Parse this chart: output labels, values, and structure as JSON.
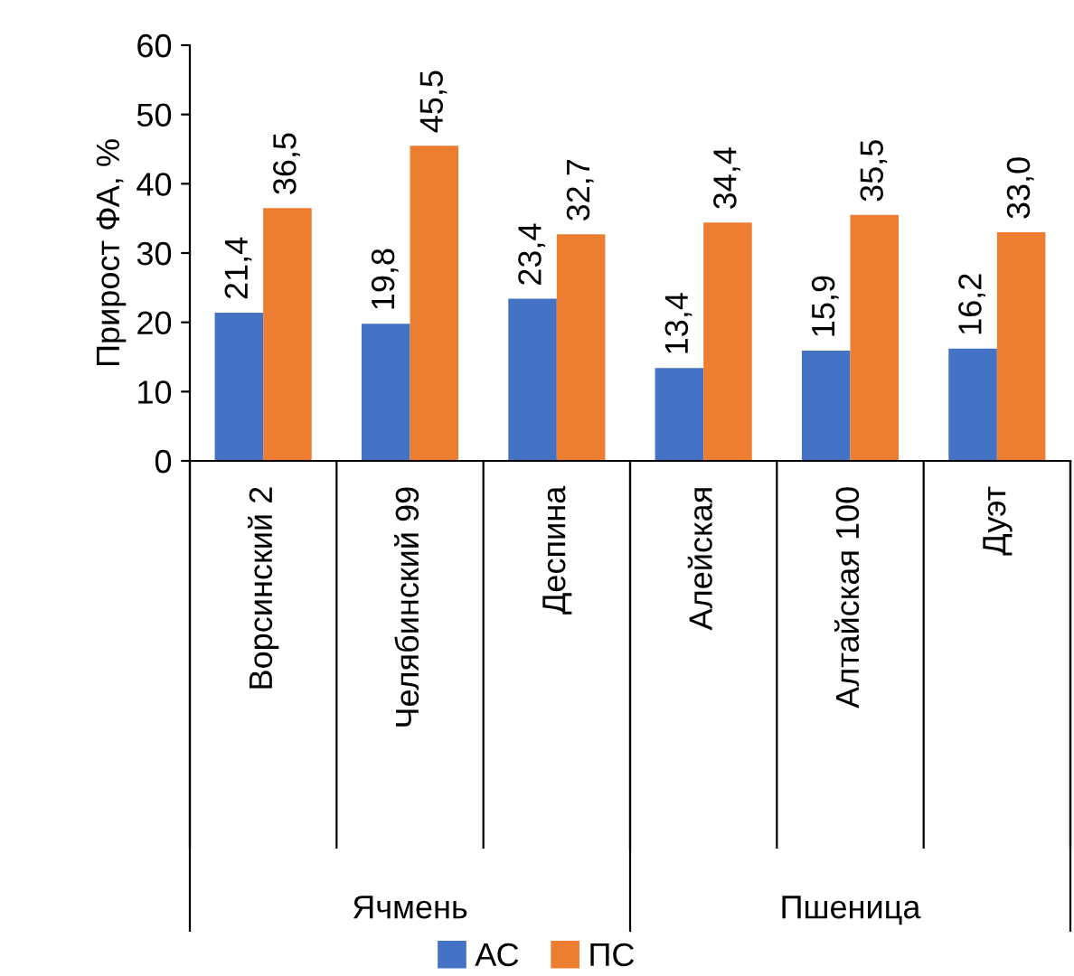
{
  "chart_data": {
    "type": "bar",
    "ylabel": "Прирост ФА, %",
    "categories": [
      "Ворсинский 2",
      "Челябинский 99",
      "Деспина",
      "Алейская",
      "Алтайская 100",
      "Дуэт"
    ],
    "series": [
      {
        "name": "АС",
        "color": "#4472c4",
        "values": [
          21.4,
          19.8,
          23.4,
          13.4,
          15.9,
          16.2
        ],
        "value_labels": [
          "21,4",
          "19,8",
          "23,4",
          "13,4",
          "15,9",
          "16,2"
        ]
      },
      {
        "name": "ПС",
        "color": "#ed7d31",
        "values": [
          36.5,
          45.5,
          32.7,
          34.4,
          35.5,
          33.0
        ],
        "value_labels": [
          "36,5",
          "45,5",
          "32,7",
          "34,4",
          "35,5",
          "33,0"
        ]
      }
    ],
    "annotations": [
      "Ячмень",
      "Пшеница"
    ],
    "ylim": [
      0,
      60
    ],
    "yticks": [
      0,
      10,
      20,
      30,
      40,
      50,
      60
    ],
    "grid": false,
    "legend": "bottom"
  }
}
